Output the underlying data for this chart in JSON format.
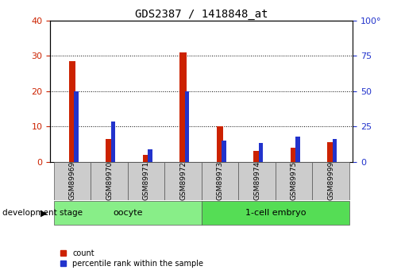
{
  "title": "GDS2387 / 1418848_at",
  "samples": [
    "GSM89969",
    "GSM89970",
    "GSM89971",
    "GSM89972",
    "GSM89973",
    "GSM89974",
    "GSM89975",
    "GSM89999"
  ],
  "count_values": [
    28.5,
    6.5,
    2.0,
    31.0,
    10.0,
    3.0,
    4.0,
    5.5
  ],
  "percentile_values": [
    50.0,
    28.5,
    8.5,
    50.0,
    15.0,
    13.5,
    17.5,
    16.0
  ],
  "count_color": "#cc2200",
  "percentile_color": "#2233cc",
  "left_ylim": [
    0,
    40
  ],
  "right_ylim": [
    0,
    100
  ],
  "left_yticks": [
    0,
    10,
    20,
    30,
    40
  ],
  "right_yticks": [
    0,
    25,
    50,
    75,
    100
  ],
  "groups": [
    {
      "label": "oocyte",
      "start": 0,
      "end": 4,
      "color": "#88ee88"
    },
    {
      "label": "1-cell embryo",
      "start": 4,
      "end": 8,
      "color": "#55dd55"
    }
  ],
  "stage_label": "development stage",
  "legend_count": "count",
  "legend_percentile": "percentile rank within the sample",
  "red_bar_width": 0.18,
  "blue_bar_width": 0.12,
  "tick_label_color_left": "#cc2200",
  "tick_label_color_right": "#2233cc",
  "bg_color": "#ffffff",
  "plot_bg": "#ffffff",
  "sample_box_color": "#cccccc",
  "group_text_color": "#000000",
  "right_100_label": "100°"
}
